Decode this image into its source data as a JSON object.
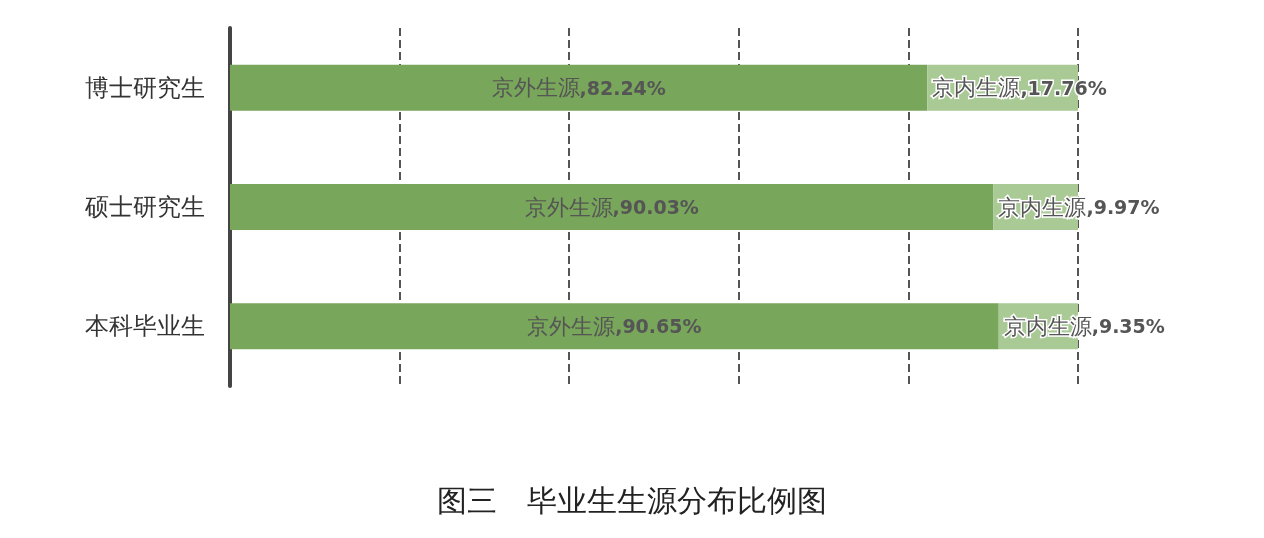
{
  "chart_data": {
    "type": "bar",
    "orientation": "horizontal",
    "stacked": true,
    "title": "图三　毕业生生源分布比例图",
    "categories": [
      "博士研究生",
      "硕士研究生",
      "本科毕业生"
    ],
    "series": [
      {
        "name": "京外生源",
        "color": "#78a65a",
        "values": [
          82.24,
          90.03,
          90.65
        ],
        "value_labels": [
          ",82.24%",
          ",90.03%",
          ",90.65%"
        ]
      },
      {
        "name": "京内生源",
        "color": "#a9c995",
        "values": [
          17.76,
          9.97,
          9.35
        ],
        "value_labels": [
          ",17.76%",
          ",9.97%",
          ",9.35%"
        ]
      }
    ],
    "tick_labels": "y",
    "grid": "x",
    "line_style": "dashed"
  }
}
